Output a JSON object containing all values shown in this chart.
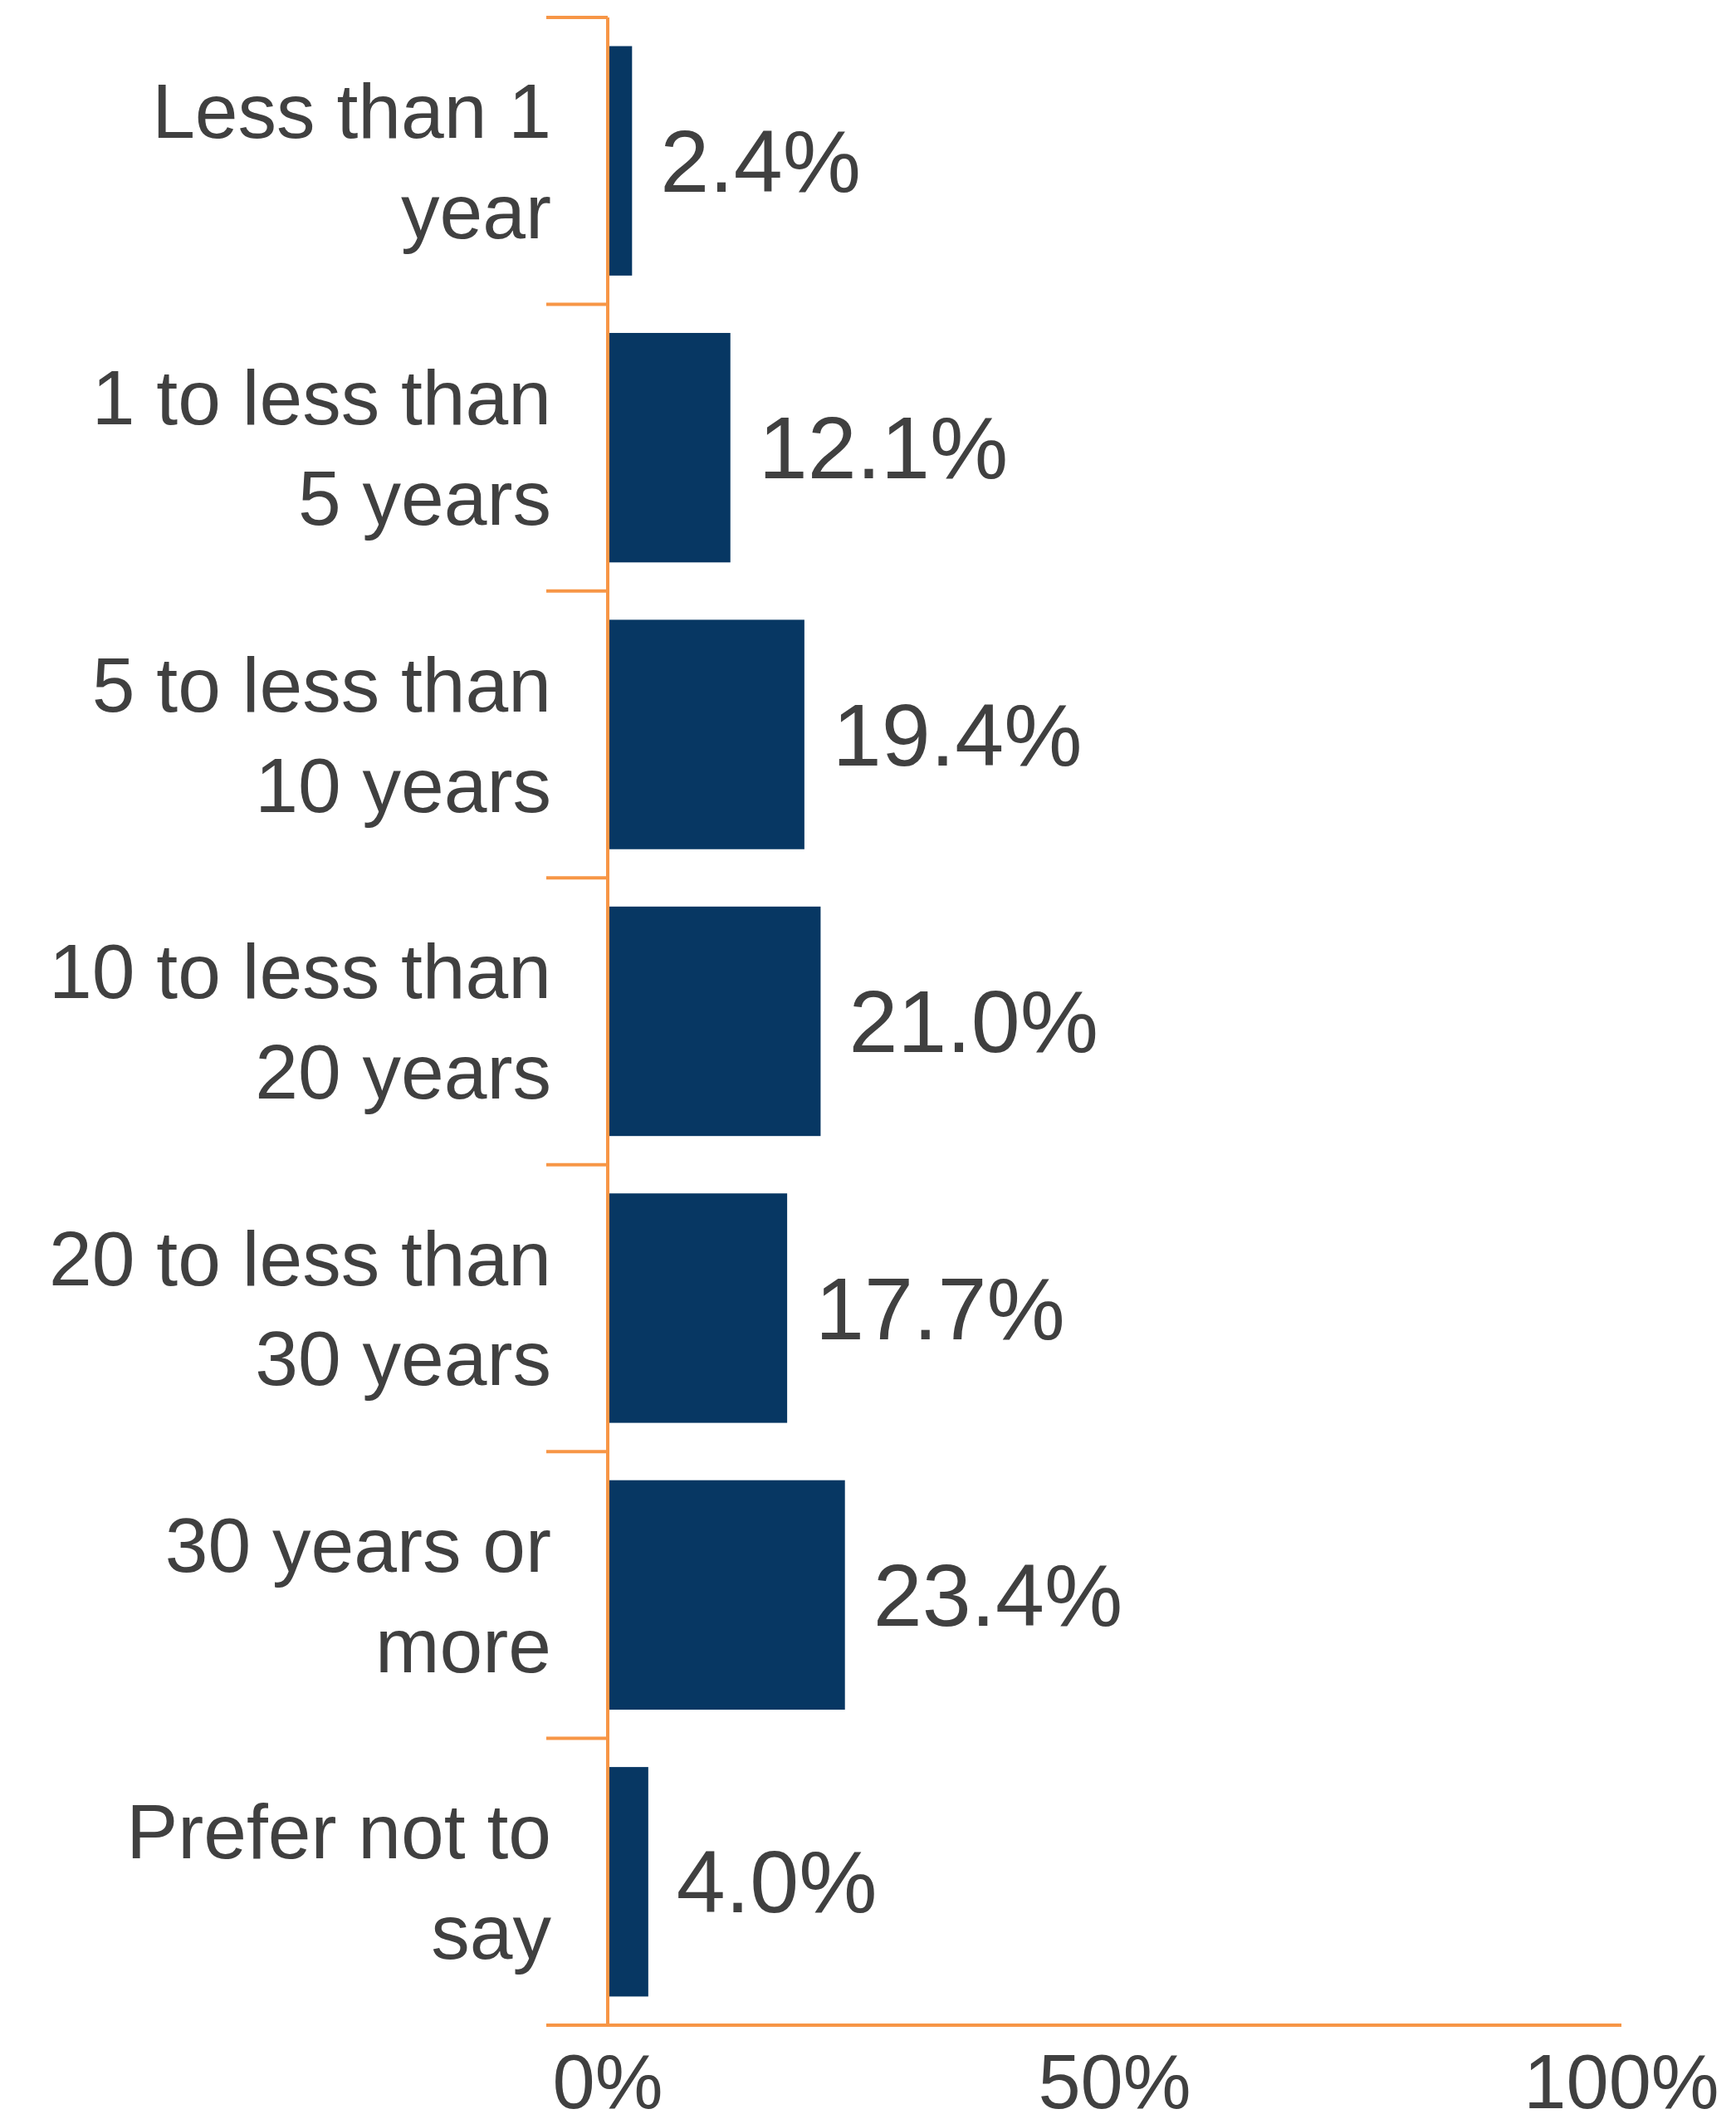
{
  "chart_data": {
    "type": "bar",
    "orientation": "horizontal",
    "categories": [
      "Less than 1 year",
      "1 to less than 5 years",
      "5 to less than 10 years",
      "10 to less than 20 years",
      "20 to less than 30 years",
      "30 years or more",
      "Prefer not to say"
    ],
    "values": [
      2.4,
      12.1,
      19.4,
      21.0,
      17.7,
      23.4,
      4.0
    ],
    "value_labels": [
      "2.4%",
      "12.1%",
      "19.4%",
      "21.0%",
      "17.7%",
      "23.4%",
      "4.0%"
    ],
    "color": "#073763",
    "xlim": [
      0,
      100
    ],
    "xticks": [
      {
        "value": 0,
        "label": "0%"
      },
      {
        "value": 50,
        "label": "50%"
      },
      {
        "value": 100,
        "label": "100%"
      }
    ]
  }
}
